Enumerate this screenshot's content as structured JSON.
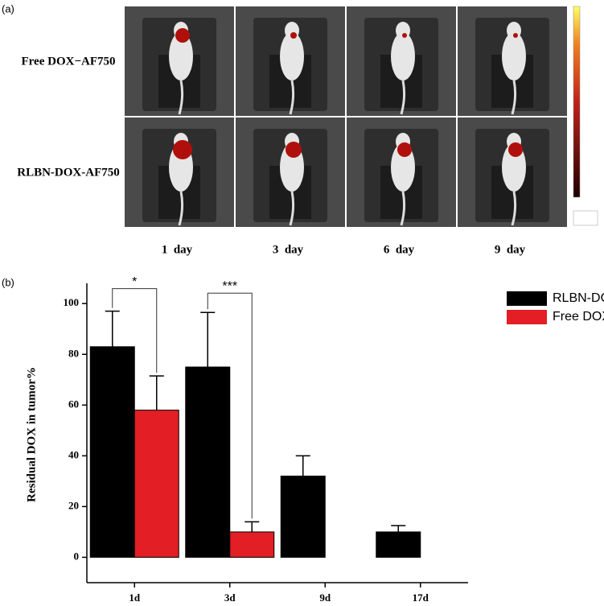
{
  "panel_a": {
    "label": "(a)",
    "rows": [
      "Free DOX−AF750",
      "RLBN-DOX-AF750"
    ],
    "columns": [
      "1  day",
      "3  day",
      "6  day",
      "9  day"
    ]
  },
  "chart_data": {
    "type": "bar",
    "panel_label": "(b)",
    "y_label": "Residual DOX in tumor%",
    "categories": [
      "1d",
      "3d",
      "9d",
      "17d"
    ],
    "series": [
      {
        "name": "RLBN-DOX",
        "color": "#000000",
        "values": [
          83,
          75,
          32,
          10
        ],
        "errors": [
          14,
          21.5,
          8,
          2.5
        ]
      },
      {
        "name": "Free DOX",
        "color": "#e31e24",
        "values": [
          58,
          10,
          null,
          null
        ],
        "errors": [
          13.5,
          4,
          null,
          null
        ]
      }
    ],
    "annotations": [
      "*",
      "***"
    ],
    "ylim": [
      -10,
      108
    ],
    "yticks": [
      0,
      20,
      40,
      60,
      80,
      100
    ],
    "legend": "top-right"
  }
}
